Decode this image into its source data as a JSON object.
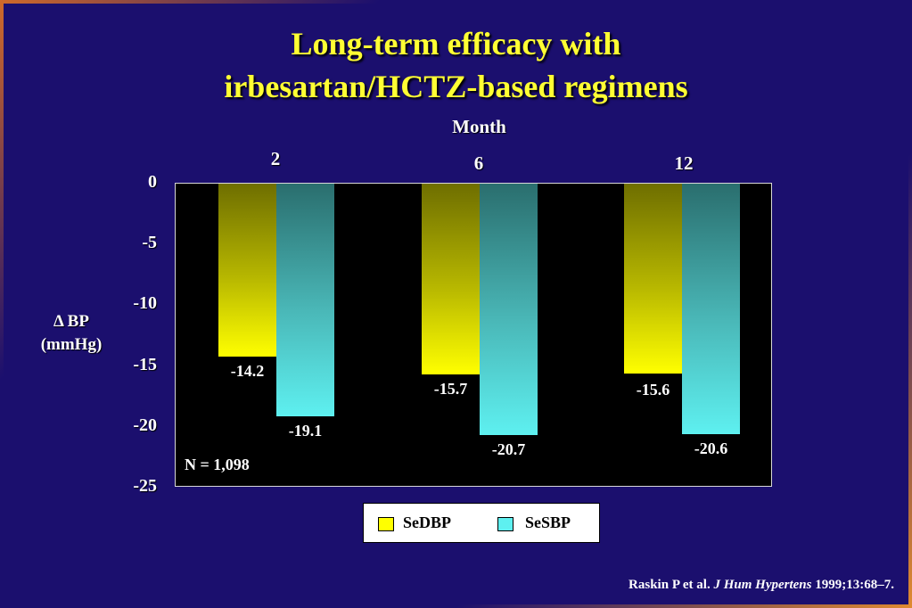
{
  "title": {
    "line1": "Long-term efficacy with",
    "line2": "irbesartan/HCTZ-based regimens"
  },
  "colors": {
    "background": "#1b0f6e",
    "title": "#ffff33",
    "sedbp": "#ffff00",
    "sesbp": "#5ef0f0",
    "plot_background": "#000000"
  },
  "chart_data": {
    "type": "bar",
    "xlabel": "Month",
    "ylabel_line1": "Δ BP",
    "ylabel_line2": "(mmHg)",
    "categories": [
      "2",
      "6",
      "12"
    ],
    "series": [
      {
        "name": "SeDBP",
        "values": [
          -14.2,
          -15.7,
          -15.6
        ]
      },
      {
        "name": "SeSBP",
        "values": [
          -19.1,
          -20.7,
          -20.6
        ]
      }
    ],
    "ylim": [
      -25,
      0
    ],
    "yticks": [
      "0",
      "-5",
      "-10",
      "-15",
      "-20",
      "-25"
    ],
    "value_labels": [
      [
        "-14.2",
        "-15.7",
        "-15.6"
      ],
      [
        "-19.1",
        "-20.7",
        "-20.6"
      ]
    ],
    "annotation": "N = 1,098",
    "legend_position": "bottom-center",
    "grid": false
  },
  "citation": {
    "authors": "Raskin P et al.",
    "journal": "J Hum Hypertens",
    "details": "1999;13:68–7."
  }
}
